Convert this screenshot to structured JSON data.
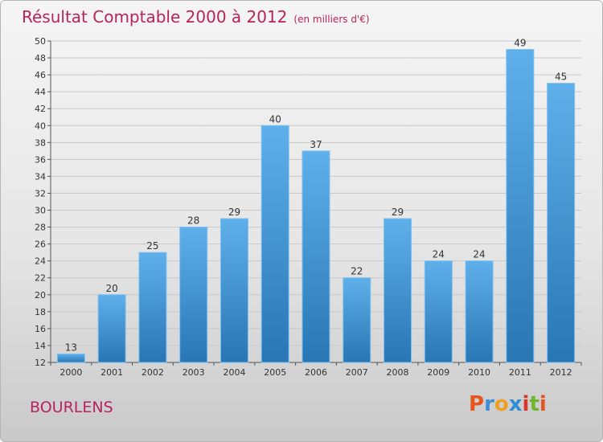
{
  "title": "Résultat Comptable 2000 à 2012",
  "subtitle": "(en milliers d'€)",
  "commune": "BOURLENS",
  "logo": "Proxiti",
  "colors": {
    "bar_light": "#5aaae6",
    "bar_dark": "#2a7ab8",
    "title": "#b8235a",
    "grid": "#c8c8c8"
  },
  "chart_data": {
    "type": "bar",
    "title": "Résultat Comptable 2000 à 2012",
    "ylabel": "en milliers d'€",
    "xlabel": "",
    "categories": [
      "2000",
      "2001",
      "2002",
      "2003",
      "2004",
      "2005",
      "2006",
      "2007",
      "2008",
      "2009",
      "2010",
      "2011",
      "2012"
    ],
    "values": [
      13,
      20,
      25,
      28,
      29,
      40,
      37,
      22,
      29,
      24,
      24,
      49,
      45
    ],
    "ylim": [
      12,
      50
    ],
    "yticks": [
      12,
      14,
      16,
      18,
      20,
      22,
      24,
      26,
      28,
      30,
      32,
      34,
      36,
      38,
      40,
      42,
      44,
      46,
      48,
      50
    ],
    "grid": true
  }
}
